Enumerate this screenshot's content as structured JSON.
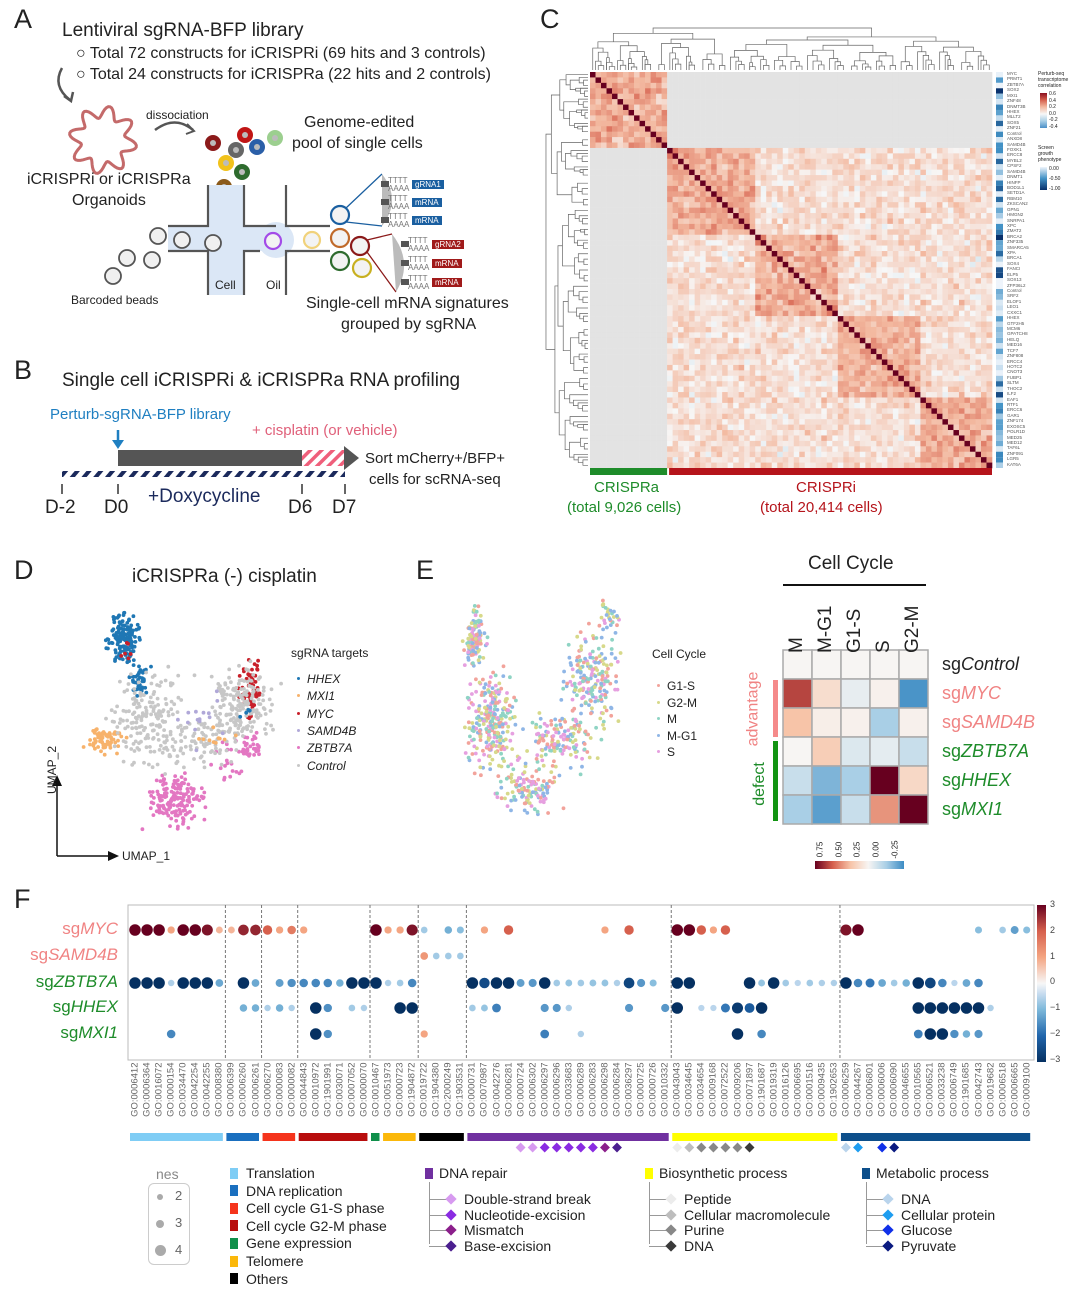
{
  "panels": {
    "a": "A",
    "b": "B",
    "c": "C",
    "d": "D",
    "e": "E",
    "f": "F"
  },
  "panel_a": {
    "title": "Lentiviral sgRNA-BFP library",
    "bullets": [
      "Total 72 constructs for iCRISPRi (69 hits and 3 controls)",
      "Total 24 constructs for iCRISPRa (22 hits and 2 controls)"
    ],
    "dissociation": "dissociation",
    "pool_line1": "Genome-edited",
    "pool_line2": "pool of single cells",
    "organoid_line1": "iCRISPRi or iCRISPRa",
    "organoid_line2": "Organoids",
    "cell": "Cell",
    "oil": "Oil",
    "beads": "Barcoded beads",
    "poly_t": "TTTT",
    "poly_a": "AAAA",
    "tags_blue": [
      "gRNA1",
      "mRNA",
      "mRNA"
    ],
    "tags_red": [
      "gRNA2",
      "mRNA",
      "mRNA"
    ],
    "signature_line1": "Single-cell mRNA signatures",
    "signature_line2": "grouped by sgRNA"
  },
  "panel_b": {
    "title": "Single cell iCRISPRi & iCRISPRa RNA profiling",
    "library": "Perturb-sgRNA-BFP library",
    "cisplatin": "+ cisplatin (or vehicle)",
    "sort_line1": "Sort mCherry+/BFP+",
    "sort_line2": "cells for scRNA-seq",
    "doxycycline": "+Doxycycline",
    "days": [
      "D-2",
      "D0",
      "D6",
      "D7"
    ],
    "colors": {
      "library": "#1f7fc1",
      "cisplatin": "#e0607a",
      "doxy": "#1b2a5c"
    }
  },
  "panel_c": {
    "genes": [
      "MYC",
      "PRMT1",
      "ZBTB7A",
      "SOX2",
      "MXI1",
      "ZNF48",
      "DNMT3B",
      "HHEX",
      "MLLT2",
      "SOX5",
      "ZNF21",
      "Control",
      "ANXD8",
      "SAMD4B",
      "FOXK1",
      "ERCC8",
      "MYBL2",
      "CPSF2",
      "SAMD4B",
      "DNMT1",
      "HINFP",
      "BOD1L1",
      "SETD1A",
      "RBM10",
      "ZKSCAN2",
      "GPN1",
      "HMGN2",
      "SNRPA1",
      "XPC",
      "ZMAT2",
      "BRCA2",
      "ZNF335",
      "SMARCA5",
      "XPA",
      "BRCA1",
      "SOX4",
      "FANCI",
      "ELP5",
      "SOX13",
      "ZFP36L2",
      "Control",
      "SRF2",
      "ELOF1",
      "LEO1",
      "CXXC1",
      "HHEX",
      "GTF2H5",
      "MCM6",
      "GPATCH8",
      "HELQ",
      "MED16",
      "TCF7",
      "ZNF808",
      "ERCC4",
      "HOTC2",
      "CNOT3",
      "FUBP1",
      "SLTM",
      "THOC2",
      "ILF2",
      "EAF1",
      "RTF1",
      "ERCC6",
      "GAR1",
      "ZNF174",
      "EXOSC5",
      "POLR1D",
      "MED25",
      "MED12",
      "TAF6L",
      "ZNF091",
      "LGR5",
      "KAT6A"
    ],
    "crispra_count": 14,
    "corr_legend_title": [
      "Perturb-seq",
      "transcriptome",
      "correlation"
    ],
    "corr_ticks": [
      "0.6",
      "0.4",
      "0.2",
      "0.0",
      "-0.2",
      "-0.4"
    ],
    "growth_legend_title": [
      "Screen",
      "growth",
      "phenotype"
    ],
    "growth_ticks": [
      "0.00",
      "-0.50",
      "-1.00"
    ],
    "crispra_label": "CRISPRa",
    "crispra_cells": "(total 9,026 cells)",
    "crispri_label": "CRISPRi",
    "crispri_cells": "(total 20,414 cells)",
    "colors": {
      "crispra": "#1e8c2a",
      "crispri": "#b5141b",
      "masked": "#e3e3e3",
      "diagonal": "#67001f"
    }
  },
  "panel_d": {
    "title": "iCRISPRa (-) cisplatin",
    "legend_title": "sgRNA targets",
    "legend": [
      {
        "label": "HHEX",
        "color": "#1f77b4"
      },
      {
        "label": "MXI1",
        "color": "#f7b26b"
      },
      {
        "label": "MYC",
        "color": "#c8202a"
      },
      {
        "label": "SAMD4B",
        "color": "#b0a8d8"
      },
      {
        "label": "ZBTB7A",
        "color": "#e377c2"
      },
      {
        "label": "Control",
        "color": "#c7c7c7"
      }
    ],
    "x_axis": "UMAP_1",
    "y_axis": "UMAP_2"
  },
  "panel_e": {
    "legend_title": "Cell Cycle",
    "legend": [
      {
        "label": "G1-S",
        "color": "#f2a39b"
      },
      {
        "label": "G2-M",
        "color": "#d7d98a"
      },
      {
        "label": "M",
        "color": "#8fd4c4"
      },
      {
        "label": "M-G1",
        "color": "#8fb6e6"
      },
      {
        "label": "S",
        "color": "#e6a0e0"
      }
    ],
    "heatmap": {
      "type": "heatmap",
      "title": "Cell Cycle",
      "columns": [
        "M",
        "M-G1",
        "G1-S",
        "S",
        "G2-M"
      ],
      "rows": [
        {
          "prefix": "sg",
          "gene": "Control",
          "color": "#222222"
        },
        {
          "prefix": "sg",
          "gene": "MYC",
          "color": "#f08383"
        },
        {
          "prefix": "sg",
          "gene": "SAMD4B",
          "color": "#f08383"
        },
        {
          "prefix": "sg",
          "gene": "ZBTB7A",
          "color": "#1e8c2a"
        },
        {
          "prefix": "sg",
          "gene": "HHEX",
          "color": "#1e8c2a"
        },
        {
          "prefix": "sg",
          "gene": "MXI1",
          "color": "#1e8c2a"
        }
      ],
      "values": [
        [
          0,
          0,
          0,
          0,
          0
        ],
        [
          0.55,
          0.1,
          -0.04,
          0.02,
          -0.42
        ],
        [
          0.2,
          0.03,
          0.02,
          -0.2,
          0.02
        ],
        [
          0.0,
          0.16,
          -0.07,
          -0.05,
          -0.12
        ],
        [
          -0.12,
          -0.3,
          -0.2,
          0.8,
          0.12
        ],
        [
          -0.2,
          -0.38,
          -0.12,
          0.32,
          0.8
        ]
      ],
      "group_advantage": "advantage",
      "group_defect": "defect",
      "scale_ticks": [
        "0.75",
        "0.50",
        "0.25",
        "0.00",
        "-0.25"
      ]
    }
  },
  "chart_data": {
    "type": "scatter",
    "title": "",
    "rows": [
      {
        "prefix": "sg",
        "gene": "MYC",
        "color": "#f08383",
        "dots": [
          [
            0,
            3
          ],
          [
            1,
            3
          ],
          [
            2,
            3
          ],
          [
            3,
            1
          ],
          [
            4,
            3
          ],
          [
            5,
            3
          ],
          [
            6,
            2.8
          ],
          [
            7,
            0.8
          ],
          [
            8,
            0.8
          ],
          [
            9,
            2.6
          ],
          [
            10,
            2.6
          ],
          [
            11,
            2
          ],
          [
            12,
            1
          ],
          [
            13,
            1.6
          ],
          [
            14,
            1
          ],
          [
            20,
            3
          ],
          [
            21,
            1
          ],
          [
            22,
            1
          ],
          [
            23,
            2.8
          ],
          [
            24,
            -0.7
          ],
          [
            26,
            -1.1
          ],
          [
            27,
            -0.9
          ],
          [
            29,
            1
          ],
          [
            31,
            2
          ],
          [
            39,
            1
          ],
          [
            41,
            2
          ],
          [
            45,
            3
          ],
          [
            46,
            3
          ],
          [
            47,
            2
          ],
          [
            48,
            1
          ],
          [
            49,
            2
          ],
          [
            59,
            2.8
          ],
          [
            60,
            3
          ],
          [
            70,
            -0.9
          ],
          [
            72,
            -0.7
          ],
          [
            73,
            -1.3
          ],
          [
            74,
            -0.9
          ]
        ]
      },
      {
        "prefix": "sg",
        "gene": "SAMD4B",
        "color": "#f08383",
        "dots": [
          [
            24,
            1.2
          ],
          [
            25,
            -0.7
          ],
          [
            26,
            -0.7
          ],
          [
            27,
            -0.7
          ]
        ]
      },
      {
        "prefix": "sg",
        "gene": "ZBTB7A",
        "color": "#1e8c2a",
        "dots": [
          [
            0,
            -3
          ],
          [
            1,
            -3
          ],
          [
            2,
            -3
          ],
          [
            3,
            -0.6
          ],
          [
            4,
            -3
          ],
          [
            5,
            -3
          ],
          [
            6,
            -3
          ],
          [
            7,
            -1.2
          ],
          [
            9,
            -3
          ],
          [
            10,
            -1.2
          ],
          [
            12,
            -1.3
          ],
          [
            13,
            -1.5
          ],
          [
            14,
            -1.6
          ],
          [
            15,
            -1.6
          ],
          [
            16,
            -1.6
          ],
          [
            17,
            -1.1
          ],
          [
            18,
            -3
          ],
          [
            19,
            -3
          ],
          [
            20,
            -3
          ],
          [
            21,
            -0.6
          ],
          [
            22,
            -0.7
          ],
          [
            23,
            -1.6
          ],
          [
            28,
            -3
          ],
          [
            29,
            -2.5
          ],
          [
            30,
            -3
          ],
          [
            31,
            -3
          ],
          [
            32,
            -1.3
          ],
          [
            33,
            -1.4
          ],
          [
            34,
            -3
          ],
          [
            35,
            -0.7
          ],
          [
            36,
            -0.8
          ],
          [
            37,
            -0.7
          ],
          [
            38,
            -0.8
          ],
          [
            39,
            -0.8
          ],
          [
            40,
            -0.6
          ],
          [
            41,
            -2.6
          ],
          [
            42,
            -1.4
          ],
          [
            43,
            -0.9
          ],
          [
            45,
            -3
          ],
          [
            46,
            -3
          ],
          [
            51,
            -3
          ],
          [
            52,
            -0.8
          ],
          [
            53,
            -3
          ],
          [
            54,
            -0.7
          ],
          [
            55,
            -0.5
          ],
          [
            56,
            -0.7
          ],
          [
            57,
            -0.6
          ],
          [
            58,
            -0.6
          ],
          [
            59,
            -3
          ],
          [
            60,
            -1.6
          ],
          [
            61,
            -1.8
          ],
          [
            62,
            -1.2
          ],
          [
            63,
            -0.7
          ],
          [
            64,
            -1.1
          ],
          [
            65,
            -3
          ],
          [
            66,
            -2.6
          ],
          [
            67,
            -1.6
          ],
          [
            68,
            -0.5
          ],
          [
            69,
            -1.2
          ],
          [
            70,
            -1.6
          ]
        ]
      },
      {
        "prefix": "sg",
        "gene": "HHEX",
        "color": "#1e8c2a",
        "dots": [
          [
            9,
            -1.1
          ],
          [
            10,
            -1.1
          ],
          [
            11,
            -0.6
          ],
          [
            12,
            -1.1
          ],
          [
            13,
            -0.6
          ],
          [
            15,
            -3
          ],
          [
            16,
            -1.5
          ],
          [
            18,
            -0.7
          ],
          [
            19,
            -0.6
          ],
          [
            22,
            -3
          ],
          [
            23,
            -3
          ],
          [
            28,
            -0.7
          ],
          [
            29,
            -0.8
          ],
          [
            30,
            -1.7
          ],
          [
            34,
            -1.4
          ],
          [
            35,
            -1.4
          ],
          [
            36,
            -0.6
          ],
          [
            41,
            -1.4
          ],
          [
            44,
            -1.4
          ],
          [
            45,
            -3
          ],
          [
            47,
            -0.5
          ],
          [
            48,
            -0.5
          ],
          [
            49,
            -1.8
          ],
          [
            50,
            -2.8
          ],
          [
            51,
            -2.2
          ],
          [
            52,
            -3
          ],
          [
            65,
            -3
          ],
          [
            66,
            -3
          ],
          [
            67,
            -3
          ],
          [
            68,
            -3
          ],
          [
            69,
            -3
          ],
          [
            70,
            -3
          ],
          [
            71,
            -0.6
          ]
        ]
      },
      {
        "prefix": "sg",
        "gene": "MXI1",
        "color": "#1e8c2a",
        "dots": [
          [
            3,
            -1.6
          ],
          [
            15,
            -3
          ],
          [
            16,
            -1.5
          ],
          [
            24,
            1
          ],
          [
            34,
            -1.7
          ],
          [
            37,
            -0.6
          ],
          [
            50,
            -3
          ],
          [
            52,
            -1.6
          ],
          [
            65,
            -1.7
          ],
          [
            66,
            -3
          ],
          [
            67,
            -3
          ],
          [
            68,
            -1.5
          ],
          [
            69,
            -1.1
          ],
          [
            70,
            -1.4
          ]
        ]
      }
    ],
    "go_terms": [
      "GO:0006412",
      "GO:0006364",
      "GO:0016072",
      "GO:0000154",
      "GO:0034470",
      "GO:0042254",
      "GO:0042255",
      "GO:0008380",
      "GO:0006399",
      "GO:0006260",
      "GO:0006261",
      "GO:0006270",
      "GO:0000083",
      "GO:0000082",
      "GO:0044843",
      "GO:0010972",
      "GO:1901991",
      "GO:0030071",
      "GO:0007052",
      "GO:0000070",
      "GO:0010467",
      "GO:0051973",
      "GO:0000723",
      "GO:1904872",
      "GO:0019722",
      "GO:1904380",
      "GO:2000249",
      "GO:1903531",
      "GO:0000731",
      "GO:0070987",
      "GO:0042276",
      "GO:0006281",
      "GO:0000724",
      "GO:0006302",
      "GO:0006297",
      "GO:0006296",
      "GO:0033683",
      "GO:0006289",
      "GO:0006283",
      "GO:0006298",
      "GO:0006284",
      "GO:0036297",
      "GO:0000725",
      "GO:0000726",
      "GO:0010332",
      "GO:0043043",
      "GO:0034645",
      "GO:0034654",
      "GO:0009168",
      "GO:0072522",
      "GO:0009206",
      "GO:0071897",
      "GO:1901687",
      "GO:0019319",
      "GO:0016126",
      "GO:0006695",
      "GO:0001516",
      "GO:0009435",
      "GO:1902653",
      "GO:0006259",
      "GO:0044267",
      "GO:0006801",
      "GO:0006006",
      "GO:0006090",
      "GO:0046655",
      "GO:0010565",
      "GO:0006521",
      "GO:0033238",
      "GO:0006749",
      "GO:1901685",
      "GO:0042743",
      "GO:0019682",
      "GO:0006518",
      "GO:0006665",
      "GO:0009100"
    ],
    "groups": [
      {
        "label": "Translation",
        "color": "#7fcdf5",
        "count": 8
      },
      {
        "label": "DNA replication",
        "color": "#1a6fbf",
        "count": 3
      },
      {
        "label": "Cell cycle G1-S phase",
        "color": "#f5341c",
        "count": 3
      },
      {
        "label": "Cell cycle G2-M phase",
        "color": "#b80d0d",
        "count": 6
      },
      {
        "label": "Gene expression",
        "color": "#0f8f4a",
        "count": 1
      },
      {
        "label": "Telomere",
        "color": "#fbb80a",
        "count": 3
      },
      {
        "label": "Others",
        "color": "#000000",
        "count": 4
      },
      {
        "label": "DNA repair",
        "color": "#7030a0",
        "count": 17
      },
      {
        "label": "Biosynthetic process",
        "color": "#ffff00",
        "count": 14
      },
      {
        "label": "Metabolic process",
        "color": "#0d4f8b",
        "count": 16
      }
    ],
    "subgroups": [
      {
        "parent": "DNA repair",
        "items": [
          {
            "label": "Double-strand break",
            "color": "#d79af0",
            "columns": [
              32,
              33
            ]
          },
          {
            "label": "Nucleotide-excision",
            "color": "#8a2be2",
            "columns": [
              34,
              35,
              36,
              37,
              38
            ]
          },
          {
            "label": "Mismatch",
            "color": "#8b1f8b",
            "columns": [
              39
            ]
          },
          {
            "label": "Base-excision",
            "color": "#4b1f8f",
            "columns": [
              40
            ]
          }
        ]
      },
      {
        "parent": "Biosynthetic process",
        "items": [
          {
            "label": "Peptide",
            "color": "#ececec",
            "columns": [
              45
            ]
          },
          {
            "label": "Cellular macromolecule",
            "color": "#bdbdbd",
            "columns": [
              46
            ]
          },
          {
            "label": "Purine",
            "color": "#888888",
            "columns": [
              47,
              48,
              49,
              50
            ]
          },
          {
            "label": "DNA",
            "color": "#3a3a3a",
            "columns": [
              51
            ]
          }
        ]
      },
      {
        "parent": "Metabolic process",
        "items": [
          {
            "label": "DNA",
            "color": "#b9d4ec",
            "columns": [
              59
            ]
          },
          {
            "label": "Cellular protein",
            "color": "#1e9df0",
            "columns": [
              60
            ]
          },
          {
            "label": "Glucose",
            "color": "#1030e8",
            "columns": [
              62
            ]
          },
          {
            "label": "Pyruvate",
            "color": "#0a1a80",
            "columns": [
              63
            ]
          }
        ]
      }
    ],
    "colorbar": {
      "range": [
        -3,
        3
      ],
      "ticks": [
        "3",
        "2",
        "1",
        "0",
        "−1",
        "−2",
        "−3"
      ]
    },
    "size_legend": {
      "title": "nes",
      "values": [
        "2",
        "3",
        "4"
      ]
    }
  }
}
